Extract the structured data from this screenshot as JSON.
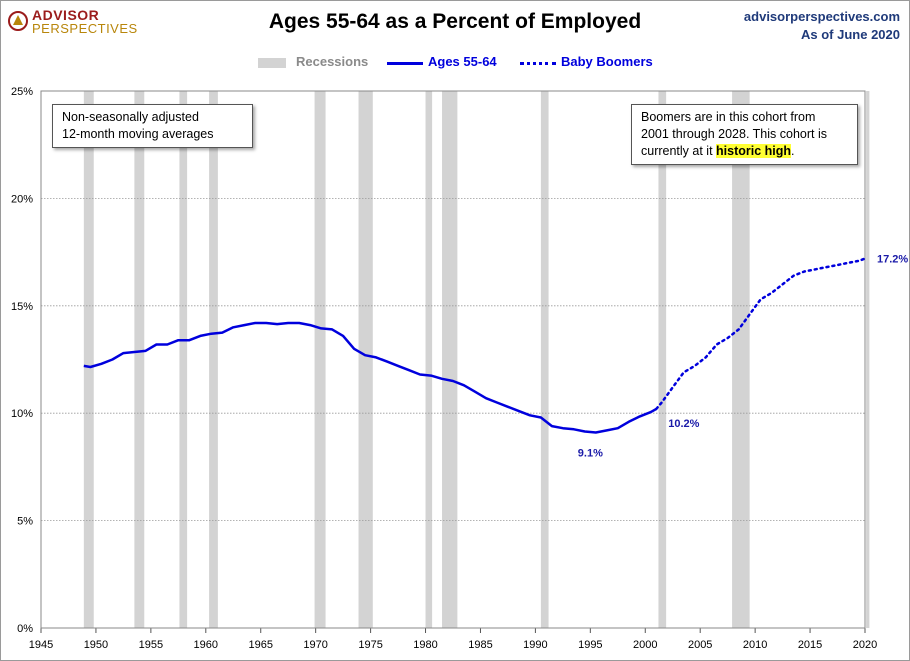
{
  "header": {
    "logo_line1": "ADVISOR",
    "logo_line2": "PERSPECTIVES",
    "title": "Ages 55-64 as a Percent of Employed",
    "site": "advisorperspectives.com",
    "as_of": "As of June 2020"
  },
  "legend": {
    "recessions": "Recessions",
    "ages": "Ages 55-64",
    "boomers": "Baby Boomers"
  },
  "notes": {
    "left_line1": "Non-seasonally adjusted",
    "left_line2": "12-month moving averages",
    "right_line1": "Boomers are in this cohort from",
    "right_line2": "2001  through 2028.  This cohort is",
    "right_line3_pre": "currently at it ",
    "right_line3_hl": "historic high",
    "right_line3_post": "."
  },
  "colors": {
    "series": "#0000dd",
    "recession": "#d3d3d3",
    "title": "#000000",
    "brand": "#1f3a7a"
  },
  "chart_data": {
    "type": "line",
    "title": "Ages 55-64 as a Percent of Employed",
    "xlim": [
      1945,
      2020
    ],
    "ylim": [
      0,
      25
    ],
    "x_ticks": [
      1945,
      1950,
      1955,
      1960,
      1965,
      1970,
      1975,
      1980,
      1985,
      1990,
      1995,
      2000,
      2005,
      2010,
      2015,
      2020
    ],
    "y_ticks": [
      0,
      5,
      10,
      15,
      20,
      25
    ],
    "y_tick_labels": [
      "0%",
      "5%",
      "10%",
      "15%",
      "20%",
      "25%"
    ],
    "grid": true,
    "legend_position": "top",
    "recessions": [
      [
        1948.9,
        1949.8
      ],
      [
        1953.5,
        1954.4
      ],
      [
        1957.6,
        1958.3
      ],
      [
        1960.3,
        1961.1
      ],
      [
        1969.9,
        1970.9
      ],
      [
        1973.9,
        1975.2
      ],
      [
        1980.0,
        1980.6
      ],
      [
        1981.5,
        1982.9
      ],
      [
        1990.5,
        1991.2
      ],
      [
        2001.2,
        2001.9
      ],
      [
        2007.9,
        2009.5
      ],
      [
        2020.1,
        2020.4
      ]
    ],
    "series": [
      {
        "name": "Ages 55-64",
        "style": "solid",
        "x": [
          1948.9,
          1949.5,
          1950.5,
          1951.5,
          1952.5,
          1953.5,
          1954.5,
          1955.5,
          1956.5,
          1957.5,
          1958.5,
          1959.5,
          1960.5,
          1961.5,
          1962.5,
          1963.5,
          1964.5,
          1965.5,
          1966.5,
          1967.5,
          1968.5,
          1969.5,
          1970.5,
          1971.5,
          1972.5,
          1973.5,
          1974.5,
          1975.5,
          1976.5,
          1977.5,
          1978.5,
          1979.5,
          1980.5,
          1981.5,
          1982.5,
          1983.5,
          1984.5,
          1985.5,
          1986.5,
          1987.5,
          1988.5,
          1989.5,
          1990.5,
          1991.5,
          1992.5,
          1993.5,
          1994.5,
          1995.5,
          1996.5,
          1997.5,
          1998.5,
          1999.5,
          2000.5,
          2001.0
        ],
        "y": [
          12.2,
          12.15,
          12.3,
          12.5,
          12.8,
          12.85,
          12.9,
          13.2,
          13.2,
          13.4,
          13.4,
          13.6,
          13.7,
          13.75,
          14.0,
          14.1,
          14.2,
          14.2,
          14.15,
          14.2,
          14.2,
          14.1,
          13.95,
          13.9,
          13.6,
          13.0,
          12.7,
          12.6,
          12.4,
          12.2,
          12.0,
          11.8,
          11.75,
          11.6,
          11.5,
          11.3,
          11.0,
          10.7,
          10.5,
          10.3,
          10.1,
          9.9,
          9.8,
          9.4,
          9.3,
          9.25,
          9.15,
          9.1,
          9.2,
          9.3,
          9.6,
          9.85,
          10.05,
          10.2
        ]
      },
      {
        "name": "Baby Boomers",
        "style": "dotted",
        "x": [
          2001.0,
          2001.5,
          2002.5,
          2003.5,
          2004.5,
          2005.5,
          2006.5,
          2007.5,
          2008.5,
          2009.5,
          2010.5,
          2011.5,
          2012.5,
          2013.5,
          2014.5,
          2015.5,
          2016.5,
          2017.5,
          2018.5,
          2019.5,
          2020.0
        ],
        "y": [
          10.2,
          10.5,
          11.2,
          11.9,
          12.2,
          12.6,
          13.2,
          13.5,
          13.9,
          14.6,
          15.3,
          15.6,
          16.0,
          16.4,
          16.6,
          16.7,
          16.8,
          16.9,
          17.0,
          17.1,
          17.2
        ]
      }
    ],
    "annotations": [
      {
        "x": 1995,
        "y": 9.1,
        "label": "9.1%"
      },
      {
        "x": 2001,
        "y": 10.2,
        "label": "10.2%"
      },
      {
        "x": 2020,
        "y": 17.2,
        "label": "17.2%"
      }
    ]
  }
}
